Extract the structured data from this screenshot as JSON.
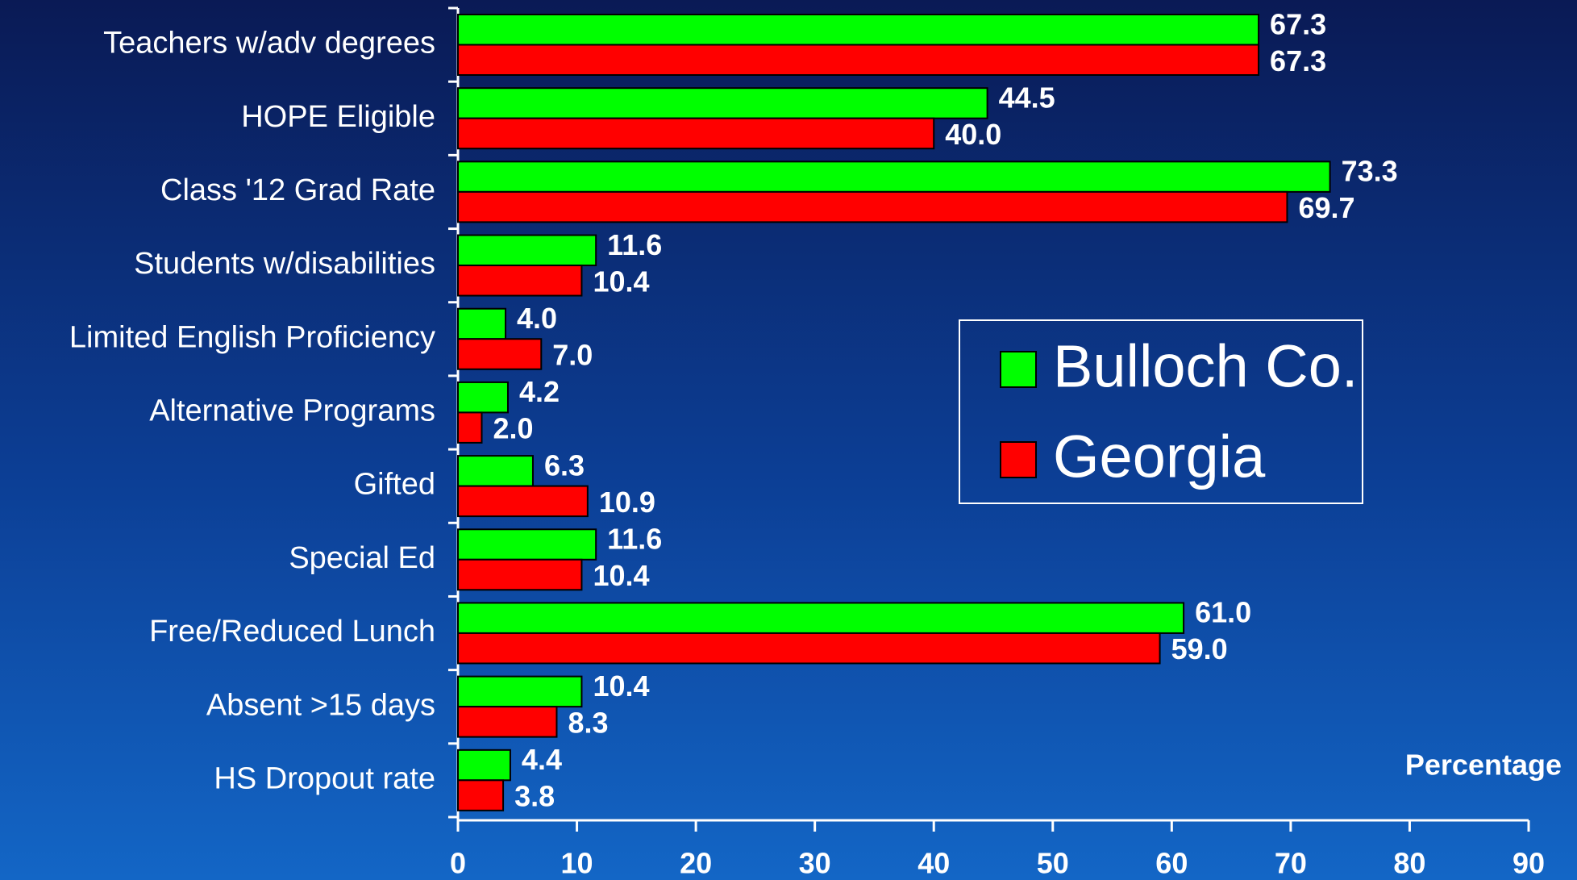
{
  "chart_data": {
    "type": "hbar",
    "x_label": "Percentage",
    "categories": [
      "Teachers w/adv degrees",
      "HOPE Eligible",
      "Class '12 Grad Rate",
      "Students w/disabilities",
      "Limited English Proficiency",
      "Alternative Programs",
      "Gifted",
      "Special Ed",
      "Free/Reduced Lunch",
      "Absent >15 days",
      "HS Dropout rate"
    ],
    "series": [
      {
        "name": "Bulloch Co.",
        "color": "#00ff00",
        "values": [
          67.3,
          44.5,
          73.3,
          11.6,
          4.0,
          4.2,
          6.3,
          11.6,
          61.0,
          10.4,
          4.4
        ],
        "value_labels": [
          "67.3",
          "44.5",
          "73.3",
          "11.6",
          "4.0",
          "4.2",
          "6.3",
          "11.6",
          "61.0",
          "10.4",
          "4.4"
        ]
      },
      {
        "name": "Georgia",
        "color": "#ff0000",
        "values": [
          67.3,
          40.0,
          69.7,
          10.4,
          7.0,
          2.0,
          10.9,
          10.4,
          59.0,
          8.3,
          3.8
        ],
        "value_labels": [
          "67.3",
          "40.0",
          "69.7",
          "10.4",
          "7.0",
          "2.0",
          "10.9",
          "10.4",
          "59.0",
          "8.3",
          "3.8"
        ]
      }
    ],
    "xlim": [
      0,
      90
    ],
    "xticks": [
      0,
      10,
      20,
      30,
      40,
      50,
      60,
      70,
      80,
      90
    ],
    "legend": "right"
  }
}
